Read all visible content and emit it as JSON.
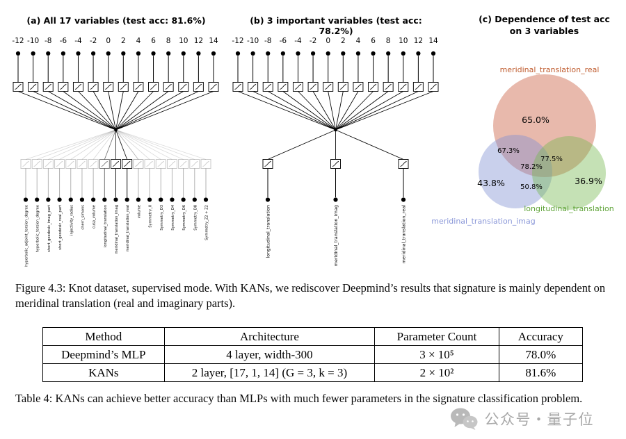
{
  "panels": {
    "a": {
      "title": "(a) All 17 variables (test acc: 81.6%)",
      "output_ticks": [
        "-12",
        "-10",
        "-8",
        "-6",
        "-4",
        "-2",
        "0",
        "2",
        "4",
        "6",
        "8",
        "10",
        "12",
        "14"
      ],
      "inputs": [
        {
          "label": "hyperbolic_adjoint_torsion_degree",
          "weight": 0.15
        },
        {
          "label": "hyperbolic_torsion_degree",
          "weight": 0.15
        },
        {
          "label": "short_geodesic_imag_part",
          "weight": 0.15
        },
        {
          "label": "short_geodesic_real_part",
          "weight": 0.15
        },
        {
          "label": "injectivity_radius",
          "weight": 0.15
        },
        {
          "label": "chern_simons",
          "weight": 0.15
        },
        {
          "label": "cusp_volume",
          "weight": 0.15
        },
        {
          "label": "longitudinal_translation",
          "weight": 0.55
        },
        {
          "label": "meridinal_translation_imag",
          "weight": 0.9
        },
        {
          "label": "meridinal_translation_real",
          "weight": 0.95
        },
        {
          "label": "volume",
          "weight": 0.3
        },
        {
          "label": "Symmetry_0",
          "weight": 0.13
        },
        {
          "label": "Symmetry_D3",
          "weight": 0.13
        },
        {
          "label": "Symmetry_D4",
          "weight": 0.13
        },
        {
          "label": "Symmetry_D6",
          "weight": 0.13
        },
        {
          "label": "Symmetry_D8",
          "weight": 0.13
        },
        {
          "label": "Symmetry_Z2 + Z2",
          "weight": 0.13
        }
      ]
    },
    "b": {
      "title": "(b) 3 important variables (test acc: 78.2%)",
      "output_ticks": [
        "-12",
        "-10",
        "-8",
        "-6",
        "-4",
        "-2",
        "0",
        "2",
        "4",
        "6",
        "8",
        "10",
        "12",
        "14"
      ],
      "inputs": [
        {
          "label": "longitudinal_translation",
          "weight": 1
        },
        {
          "label": "meridinal_translation_imag",
          "weight": 1
        },
        {
          "label": "meridinal_translation_real",
          "weight": 1
        }
      ]
    },
    "c": {
      "title_line1": "(c) Dependence of test acc",
      "title_line2": "on 3 variables",
      "venn": {
        "sets": [
          {
            "name": "meridinal_translation_real",
            "color": "#c9573a",
            "label_color": "#bf5b2d",
            "solo_value": "65.0%"
          },
          {
            "name": "meridinal_translation_imag",
            "color": "#7e8fd1",
            "label_color": "#8a97d8",
            "solo_value": "43.8%"
          },
          {
            "name": "longitudinal_translation",
            "color": "#74b84e",
            "label_color": "#5ea337",
            "solo_value": "36.9%"
          }
        ],
        "overlaps": {
          "real_imag": "67.3%",
          "real_long": "77.5%",
          "imag_long": "50.8%",
          "all": "78.2%"
        }
      }
    }
  },
  "figure_caption": "Figure 4.3: Knot dataset, supervised mode.  With KANs, we rediscover Deepmind’s results that signature is mainly dependent on meridinal translation (real and imaginary parts).",
  "table": {
    "headers": [
      "Method",
      "Architecture",
      "Parameter Count",
      "Accuracy"
    ],
    "rows": [
      [
        "Deepmind’s MLP",
        "4 layer, width-300",
        "3 × 10⁵",
        "78.0%"
      ],
      [
        "KANs",
        "2 layer, [17, 1, 14] (G = 3, k = 3)",
        "2 × 10²",
        "81.6%"
      ]
    ]
  },
  "table_caption": "Table 4: KANs can achieve better accuracy than MLPs with much fewer parameters in the signature classification problem.",
  "watermark": {
    "icon": "wechat-icon",
    "text": "公众号・量子位"
  }
}
